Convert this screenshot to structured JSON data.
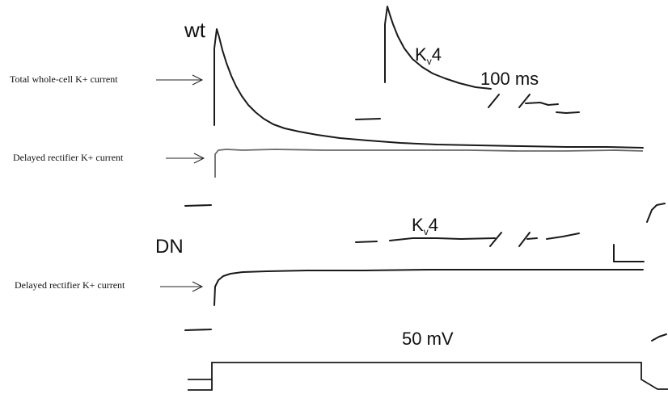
{
  "panels": {
    "wt": {
      "label": "wt"
    },
    "dn": {
      "label": "DN"
    }
  },
  "kv4_labels": [
    {
      "main": "K",
      "sub": "v",
      "tail": "4"
    },
    {
      "main": "K",
      "sub": "v",
      "tail": "4"
    }
  ],
  "scale": {
    "time_label": "100 ms",
    "voltage_label": "50 mV"
  },
  "annotations": {
    "total_current": "Total whole-cell K+ current",
    "delayed_rectifier_wt": "Delayed rectifier K+ current",
    "delayed_rectifier_dn": "Delayed rectifier K+ current"
  },
  "colors": {
    "trace": "#1a1a1a",
    "delayed_rectifier_wt_trace": "#6a6a6a",
    "background": "#ffffff"
  }
}
